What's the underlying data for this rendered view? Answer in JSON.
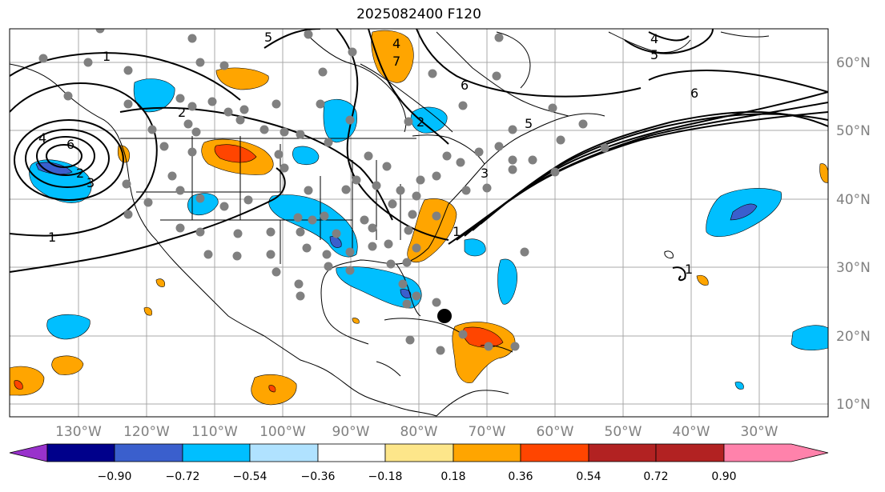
{
  "title": "2025082400 F120",
  "map": {
    "projection": "mercator",
    "lon_range": [
      -140,
      -20
    ],
    "lat_range": [
      8,
      65
    ],
    "lat_labels": [
      "60°N",
      "50°N",
      "40°N",
      "30°N",
      "20°N",
      "10°N"
    ],
    "lon_labels": [
      "130°W",
      "120°W",
      "110°W",
      "100°W",
      "90°W",
      "80°W",
      "70°W",
      "60°W",
      "50°W",
      "40°W",
      "30°W"
    ],
    "contour_labels": [
      "1",
      "2",
      "3",
      "4",
      "5",
      "6",
      "7"
    ]
  },
  "colorbar": {
    "ticks": [
      "−0.90",
      "−0.72",
      "−0.54",
      "−0.36",
      "−0.18",
      "0.18",
      "0.36",
      "0.54",
      "0.72",
      "0.90"
    ],
    "colors": [
      "#9932cc",
      "#00008b",
      "#3a5fcd",
      "#00bfff",
      "#b0e2ff",
      "#ffffff",
      "#fde68a",
      "#ffa500",
      "#ff4500",
      "#b22222",
      "#ff82ab"
    ]
  },
  "colors": {
    "light_blue": "#00bfff",
    "mid_blue": "#3a5fcd",
    "orange": "#ffa500",
    "red_orange": "#ff4500",
    "station_dot": "#808080",
    "storm_marker": "#000000",
    "grid": "#a0a0a0"
  }
}
